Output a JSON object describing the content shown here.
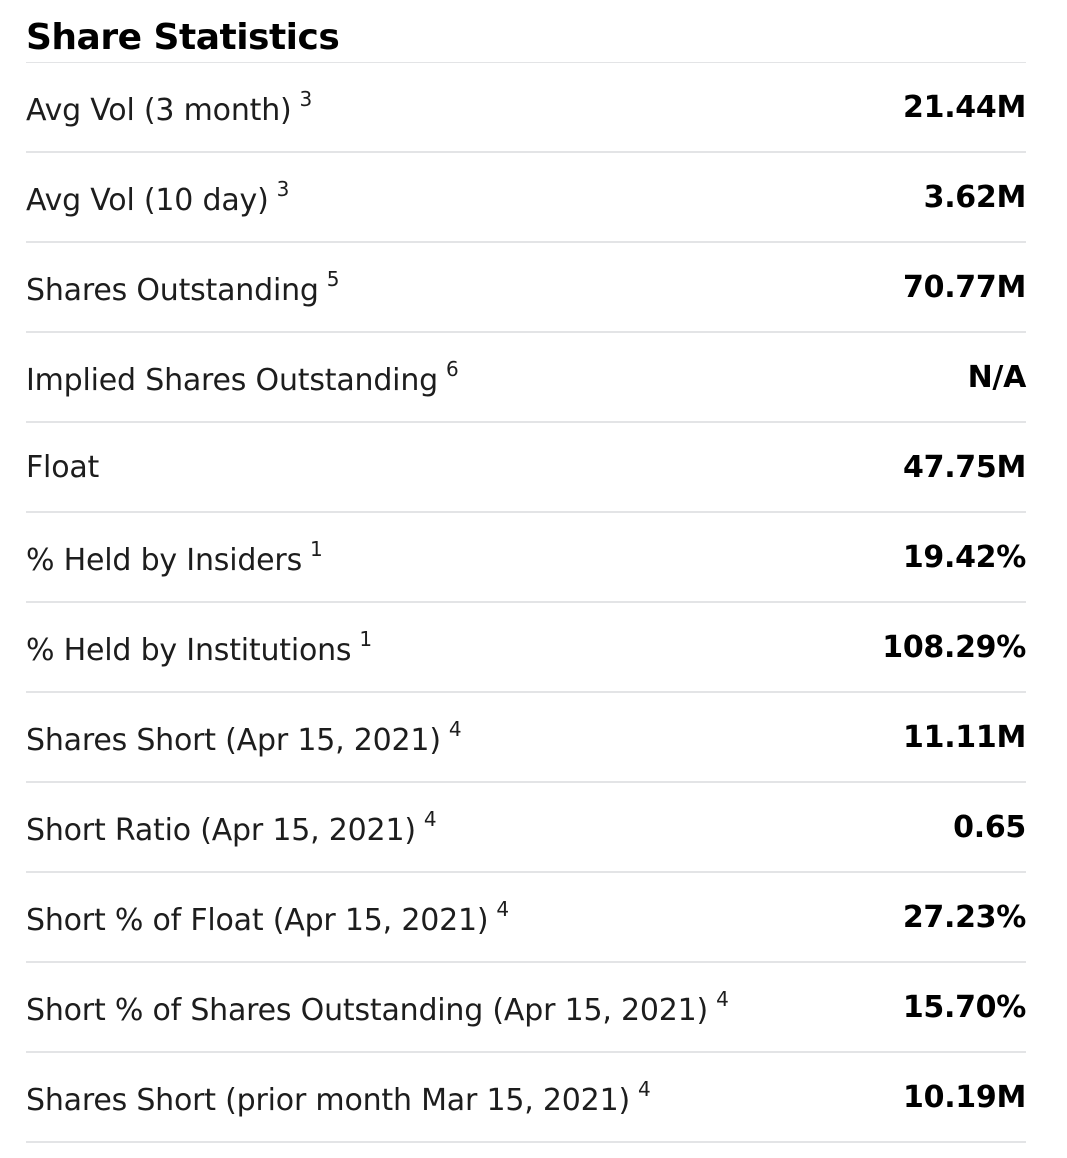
{
  "section": {
    "title": "Share Statistics"
  },
  "rows": [
    {
      "label": "Avg Vol (3 month)",
      "footnote": "3",
      "value": "21.44M"
    },
    {
      "label": "Avg Vol (10 day)",
      "footnote": "3",
      "value": "3.62M"
    },
    {
      "label": "Shares Outstanding",
      "footnote": "5",
      "value": "70.77M"
    },
    {
      "label": "Implied Shares Outstanding",
      "footnote": "6",
      "value": "N/A"
    },
    {
      "label": "Float",
      "footnote": "",
      "value": "47.75M"
    },
    {
      "label": "% Held by Insiders",
      "footnote": "1",
      "value": "19.42%"
    },
    {
      "label": "% Held by Institutions",
      "footnote": "1",
      "value": "108.29%"
    },
    {
      "label": "Shares Short (Apr 15, 2021)",
      "footnote": "4",
      "value": "11.11M"
    },
    {
      "label": "Short Ratio (Apr 15, 2021)",
      "footnote": "4",
      "value": "0.65"
    },
    {
      "label": "Short % of Float (Apr 15, 2021)",
      "footnote": "4",
      "value": "27.23%"
    },
    {
      "label": "Short % of Shares Outstanding (Apr 15, 2021)",
      "footnote": "4",
      "value": "15.70%"
    },
    {
      "label": "Shares Short (prior month Mar 15, 2021)",
      "footnote": "4",
      "value": "10.19M"
    }
  ]
}
